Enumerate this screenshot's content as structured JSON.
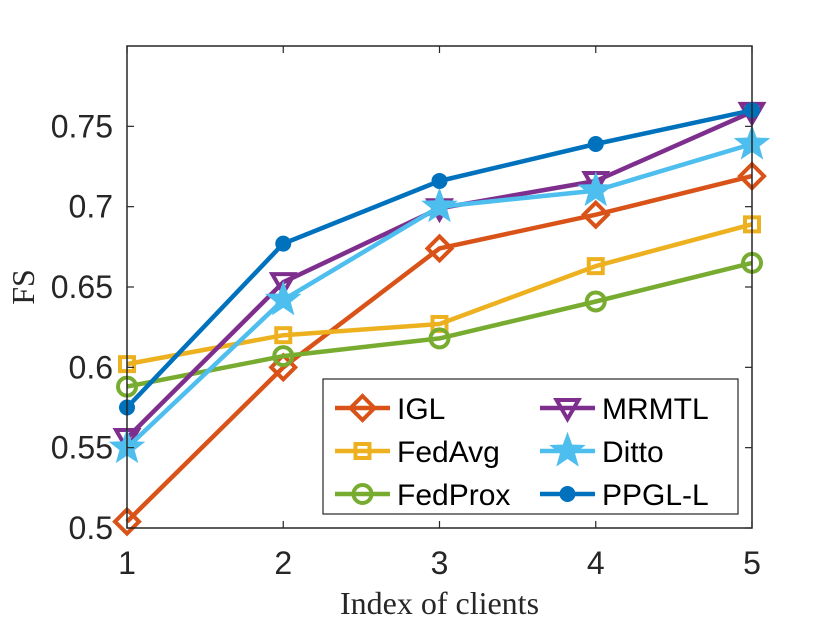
{
  "chart_data": {
    "type": "line",
    "xlabel": "Index of clients",
    "ylabel": "FS",
    "xlim": [
      1,
      5
    ],
    "ylim": [
      0.5,
      0.8
    ],
    "xticks": [
      1,
      2,
      3,
      4,
      5
    ],
    "xtick_labels": [
      "1",
      "2",
      "3",
      "4",
      "5"
    ],
    "yticks": [
      0.5,
      0.55,
      0.6,
      0.65,
      0.7,
      0.75
    ],
    "ytick_labels": [
      "0.5",
      "0.55",
      "0.6",
      "0.65",
      "0.7",
      "0.75"
    ],
    "grid": false,
    "legend_position": "bottom-right",
    "x": [
      1,
      2,
      3,
      4,
      5
    ],
    "series": [
      {
        "name": "IGL",
        "color": "#D95319",
        "marker": "diamond",
        "values": [
          0.504,
          0.6,
          0.674,
          0.695,
          0.719
        ]
      },
      {
        "name": "FedAvg",
        "color": "#EDB120",
        "marker": "square",
        "values": [
          0.602,
          0.62,
          0.627,
          0.663,
          0.689
        ]
      },
      {
        "name": "FedProx",
        "color": "#77AC30",
        "marker": "circle",
        "values": [
          0.588,
          0.607,
          0.618,
          0.641,
          0.665
        ]
      },
      {
        "name": "MRMTL",
        "color": "#7E2F8E",
        "marker": "triangle-down",
        "values": [
          0.556,
          0.653,
          0.699,
          0.716,
          0.759
        ]
      },
      {
        "name": "Ditto",
        "color": "#4DBEEE",
        "marker": "star",
        "values": [
          0.55,
          0.642,
          0.7,
          0.71,
          0.739
        ]
      },
      {
        "name": "PPGL-L",
        "color": "#0072BD",
        "marker": "filled-circle",
        "values": [
          0.575,
          0.677,
          0.716,
          0.739,
          0.76
        ]
      }
    ]
  }
}
